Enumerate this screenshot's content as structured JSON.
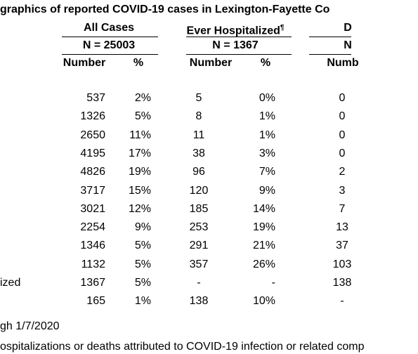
{
  "header": {
    "title": "graphics of reported COVID-19 cases in Lexington-Fayette Co"
  },
  "table": {
    "groups": [
      {
        "name": "All Cases",
        "n": "N = 25003"
      },
      {
        "name": "Ever Hospitalized",
        "mark": "¶",
        "n": "N = 1367"
      },
      {
        "name": "D",
        "n": "N"
      }
    ],
    "columns": [
      "Number",
      "%",
      "Number",
      "%",
      "Numb"
    ],
    "rows": [
      {
        "cells": [
          "537",
          "2%",
          "5",
          "0%",
          "0"
        ]
      },
      {
        "cells": [
          "1326",
          "5%",
          "8",
          "1%",
          "0"
        ]
      },
      {
        "cells": [
          "2650",
          "11%",
          "11",
          "1%",
          "0"
        ]
      },
      {
        "cells": [
          "4195",
          "17%",
          "38",
          "3%",
          "0"
        ]
      },
      {
        "cells": [
          "4826",
          "19%",
          "96",
          "7%",
          "2"
        ]
      },
      {
        "cells": [
          "3717",
          "15%",
          "120",
          "9%",
          "3"
        ]
      },
      {
        "cells": [
          "3021",
          "12%",
          "185",
          "14%",
          "7"
        ]
      },
      {
        "cells": [
          "2254",
          "9%",
          "253",
          "19%",
          "13"
        ]
      },
      {
        "cells": [
          "1346",
          "5%",
          "291",
          "21%",
          "37"
        ]
      },
      {
        "cells": [
          "1132",
          "5%",
          "357",
          "26%",
          "103"
        ]
      },
      {
        "label": "ized",
        "cells": [
          "1367",
          "5%",
          "-",
          "-",
          "138"
        ]
      },
      {
        "cells": [
          "165",
          "1%",
          "138",
          "10%",
          "-"
        ]
      }
    ]
  },
  "footnotes": [
    "gh 1/7/2020",
    "ospitalizations or deaths attributed to COVID-19 infection or related comp"
  ]
}
